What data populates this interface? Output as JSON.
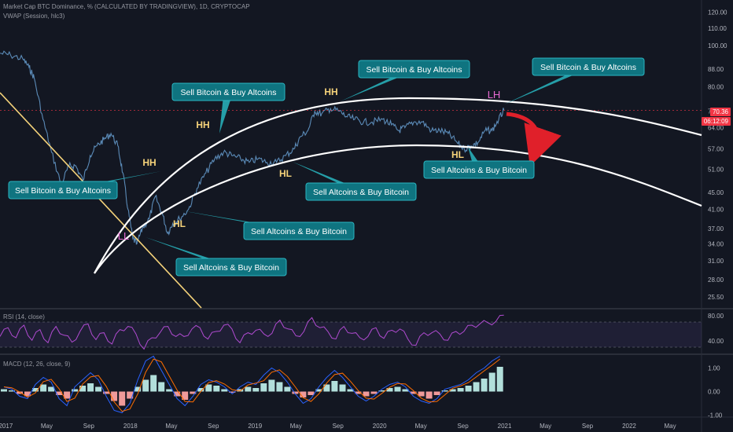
{
  "header": {
    "symbol": "Market Cap BTC Dominance, % (CALCULATED BY TRADINGVIEW), 1D, CRYPTOCAP",
    "indicator": "VWAP (Session, hlc3)"
  },
  "price_tags": {
    "price": "70.36",
    "countdown": "06:12:09"
  },
  "panes": {
    "rsi_label": "RSI (14, close)",
    "macd_label": "MACD (12, 26, close, 9)"
  },
  "annotations": {
    "callouts": [
      "Sell Bitcoin & Buy Altcoins",
      "Sell Bitcoin & Buy Altcoins",
      "Sell Bitcoin & Buy Altcoins",
      "Sell Bitcoin & Buy Altcoins",
      "Sell Altcoins & Buy Bitcoin",
      "Sell Altcoins & Buy Bitcoin",
      "Sell Altcoins & Buy Bitcoin",
      "Sell Altcoins & Buy Bitcoin"
    ],
    "swing_labels": [
      "HH",
      "HH",
      "HH",
      "HL",
      "HL",
      "HL",
      "LL",
      "LH"
    ]
  },
  "chart_data": [
    {
      "type": "line",
      "title": "Market Cap BTC Dominance, % (CALCULATED BY TRADINGVIEW), 1D, CRYPTOCAP",
      "y_scale": "log",
      "ylim": [
        24,
        125
      ],
      "y_ticks": [
        "120.00",
        "110.00",
        "100.00",
        "88.00",
        "80.00",
        "70.00",
        "64.00",
        "57.00",
        "51.00",
        "45.00",
        "41.00",
        "37.00",
        "34.00",
        "31.00",
        "28.00",
        "25.50"
      ],
      "x_ticks": [
        "2017",
        "May",
        "Sep",
        "2018",
        "May",
        "Sep",
        "2019",
        "May",
        "Sep",
        "2020",
        "May",
        "Sep",
        "2021",
        "May",
        "Sep",
        "2022",
        "May"
      ],
      "xlim": [
        "2016-12-15",
        "2022-08-01"
      ],
      "series": [
        {
          "x": [
            "2016-12-15",
            "2017-01-15",
            "2017-02-20",
            "2017-03-10",
            "2017-03-25",
            "2017-04-20",
            "2017-05-15",
            "2017-06-12",
            "2017-07-05",
            "2017-07-25",
            "2017-08-15",
            "2017-09-05",
            "2017-09-25",
            "2017-10-15",
            "2017-11-05",
            "2017-11-25",
            "2017-12-10",
            "2017-12-25",
            "2018-01-08",
            "2018-01-20",
            "2018-02-05",
            "2018-02-25",
            "2018-03-15",
            "2018-04-05",
            "2018-04-20",
            "2018-05-05",
            "2018-05-25",
            "2018-06-20",
            "2018-07-15",
            "2018-08-10",
            "2018-09-05",
            "2018-10-01",
            "2018-10-25",
            "2018-11-20",
            "2018-12-15",
            "2019-01-10",
            "2019-02-05",
            "2019-03-05",
            "2019-04-01",
            "2019-04-25",
            "2019-05-15",
            "2019-06-05",
            "2019-06-25",
            "2019-07-15",
            "2019-08-10",
            "2019-09-05",
            "2019-09-25",
            "2019-10-20",
            "2019-11-15",
            "2019-12-10",
            "2020-01-10",
            "2020-02-05",
            "2020-02-25",
            "2020-03-15",
            "2020-04-10",
            "2020-05-05",
            "2020-06-01",
            "2020-06-25",
            "2020-07-20",
            "2020-08-15",
            "2020-09-05",
            "2020-09-25",
            "2020-10-15",
            "2020-11-05",
            "2020-11-25",
            "2020-12-15",
            "2020-12-30"
          ],
          "values": [
            96,
            95,
            93,
            89,
            84,
            67,
            56,
            47,
            52,
            52,
            48,
            55,
            58,
            60,
            62,
            58,
            50,
            41,
            35,
            34,
            37,
            39,
            44,
            40,
            36,
            38,
            39,
            41,
            46,
            50,
            54,
            56,
            55,
            54,
            53,
            54,
            53,
            53,
            55,
            57,
            61,
            63,
            70,
            69,
            71,
            70,
            68,
            67,
            66,
            66,
            67,
            65,
            63,
            64,
            66,
            66,
            63,
            63,
            62,
            59,
            57,
            58,
            59,
            63,
            63,
            67,
            70.4
          ],
          "color": "#5b8bb8"
        }
      ]
    },
    {
      "type": "line",
      "title": "RSI (14, close)",
      "ylim": [
        20,
        90
      ],
      "y_ticks": [
        "80.00",
        "40.00"
      ],
      "bands": [
        70,
        30
      ],
      "series": [
        {
          "values": [
            50,
            58,
            48,
            62,
            44,
            55,
            40,
            60,
            52,
            35,
            58,
            64,
            45,
            50,
            38,
            55,
            66,
            48,
            30,
            42,
            56,
            60,
            50,
            44,
            62,
            58,
            46,
            52,
            68,
            56,
            40,
            50,
            60,
            48,
            55,
            70,
            62,
            45,
            58,
            74,
            64,
            52,
            46,
            60,
            55,
            42,
            50,
            58,
            47,
            54,
            62,
            40,
            36,
            50,
            56,
            48,
            44,
            52,
            58,
            62,
            70,
            66,
            74,
            78
          ]
        }
      ]
    },
    {
      "type": "bar",
      "title": "MACD (12, 26, close, 9)",
      "ylim": [
        -1.05,
        1.55
      ],
      "y_ticks": [
        "1.00",
        "0.00",
        "-1.00"
      ],
      "series": [
        {
          "name": "histogram",
          "values": [
            0.1,
            0.05,
            -0.1,
            -0.2,
            0.15,
            0.3,
            0.2,
            -0.15,
            -0.3,
            0.1,
            0.25,
            0.35,
            0.2,
            -0.1,
            -0.4,
            -0.6,
            -0.3,
            0.2,
            0.5,
            0.7,
            0.4,
            0.1,
            -0.2,
            -0.35,
            -0.1,
            0.15,
            0.3,
            0.25,
            0.1,
            -0.05,
            0.1,
            0.2,
            0.15,
            0.35,
            0.5,
            0.4,
            0.2,
            -0.1,
            -0.25,
            -0.15,
            0.1,
            0.3,
            0.45,
            0.3,
            0.1,
            -0.1,
            -0.2,
            -0.1,
            0.05,
            0.15,
            0.2,
            0.1,
            -0.1,
            -0.2,
            -0.3,
            -0.15,
            0.05,
            0.1,
            0.15,
            0.25,
            0.4,
            0.55,
            0.8,
            1.05
          ]
        },
        {
          "name": "macd",
          "values": [
            0.2,
            0.1,
            -0.2,
            -0.3,
            0.3,
            0.6,
            0.4,
            -0.3,
            -0.6,
            0.2,
            0.5,
            0.8,
            0.5,
            -0.2,
            -0.8,
            -0.9,
            -0.5,
            0.5,
            1.3,
            1.5,
            0.9,
            0.3,
            -0.3,
            -0.6,
            -0.2,
            0.3,
            0.5,
            0.4,
            0.2,
            -0.1,
            0.2,
            0.4,
            0.3,
            0.7,
            1.0,
            0.8,
            0.4,
            -0.1,
            -0.5,
            -0.3,
            0.2,
            0.6,
            0.9,
            0.6,
            0.2,
            -0.2,
            -0.4,
            -0.2,
            0.1,
            0.3,
            0.4,
            0.2,
            -0.2,
            -0.4,
            -0.5,
            -0.3,
            0.1,
            0.2,
            0.3,
            0.5,
            0.8,
            1.0,
            1.3,
            1.5
          ]
        }
      ]
    }
  ]
}
